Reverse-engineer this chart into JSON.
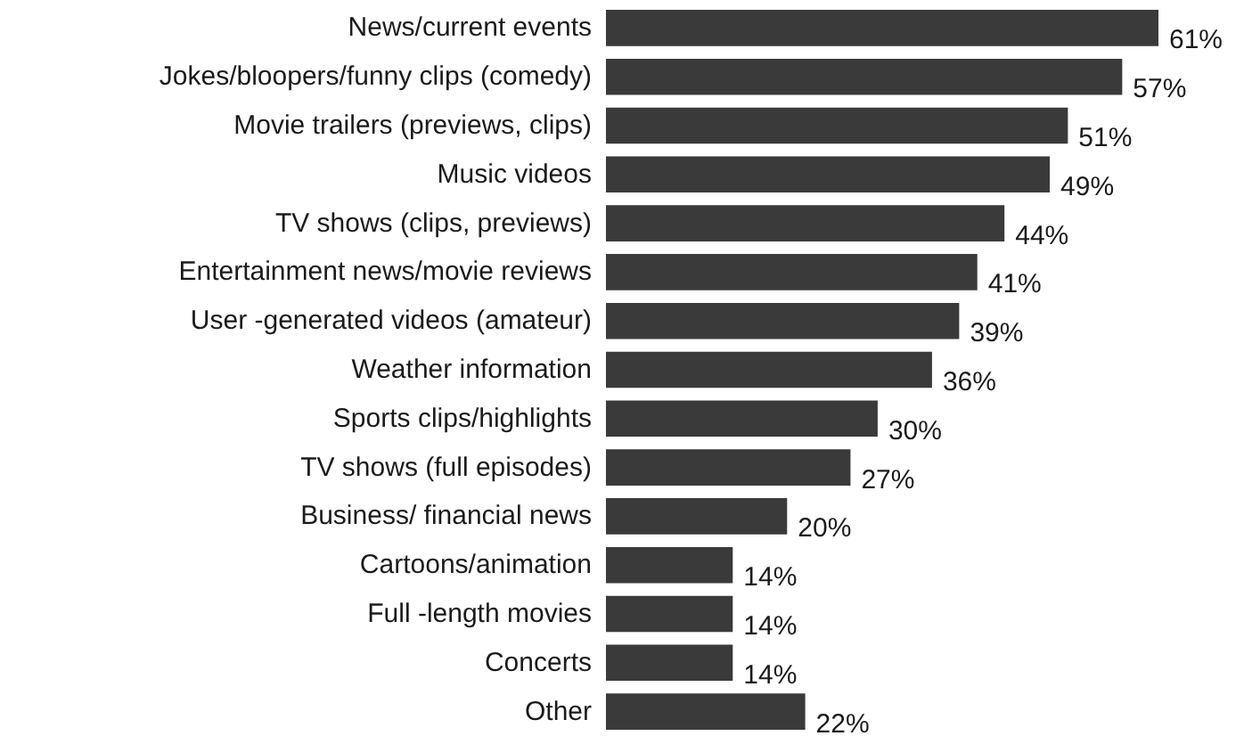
{
  "chart_data": {
    "type": "bar",
    "orientation": "horizontal",
    "categories": [
      "News/current events",
      "Jokes/bloopers/funny clips (comedy)",
      "Movie trailers (previews, clips)",
      "Music videos",
      "TV shows (clips, previews)",
      "Entertainment news/movie reviews",
      "User -generated videos (amateur)",
      "Weather information",
      "Sports clips/highlights",
      "TV shows (full episodes)",
      "Business/ financial news",
      "Cartoons/animation",
      "Full -length movies",
      "Concerts",
      "Other"
    ],
    "values": [
      61,
      57,
      51,
      49,
      44,
      41,
      39,
      36,
      30,
      27,
      20,
      14,
      14,
      14,
      22
    ],
    "value_labels": [
      "61%",
      "57%",
      "51%",
      "49%",
      "44%",
      "41%",
      "39%",
      "36%",
      "30%",
      "27%",
      "20%",
      "14%",
      "14%",
      "14%",
      "22%"
    ],
    "color": "#3a3a3a"
  }
}
